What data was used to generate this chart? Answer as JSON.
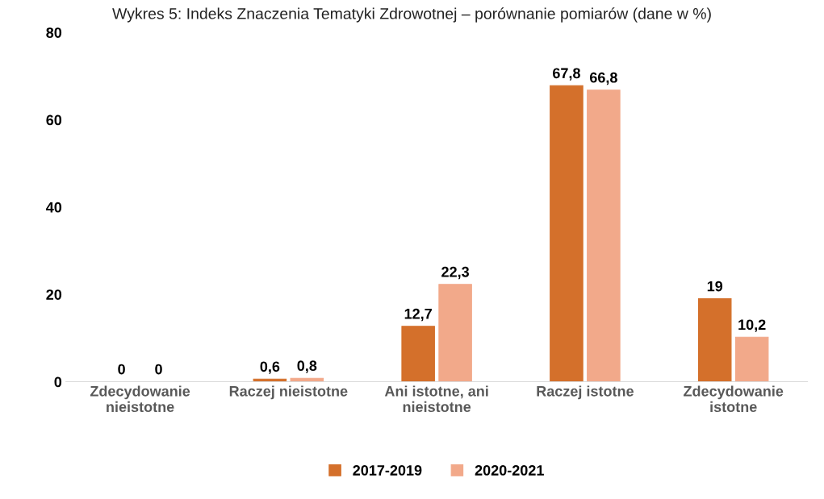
{
  "chart_data": {
    "type": "bar",
    "title": "Wykres 5: Indeks Znaczenia Tematyki Zdrowotnej – porównanie pomiarów (dane w %)",
    "categories": [
      "Zdecydowanie\nnieistotne",
      "Raczej nieistotne",
      "Ani istotne, ani\nnieistotne",
      "Raczej istotne",
      "Zdecydowanie\nistotne"
    ],
    "series": [
      {
        "name": "2017-2019",
        "color": "#d4702b",
        "values": [
          0,
          0.6,
          12.7,
          67.8,
          19
        ],
        "value_labels": [
          "0",
          "0,6",
          "12,7",
          "67,8",
          "19"
        ]
      },
      {
        "name": "2020-2021",
        "color": "#f2a98a",
        "values": [
          0,
          0.8,
          22.3,
          66.8,
          10.2
        ],
        "value_labels": [
          "0",
          "0,8",
          "22,3",
          "66,8",
          "10,2"
        ]
      }
    ],
    "ylim": [
      0,
      80
    ],
    "yticks": [
      0,
      20,
      40,
      60,
      80
    ],
    "grid": false,
    "legend": "bottom"
  }
}
